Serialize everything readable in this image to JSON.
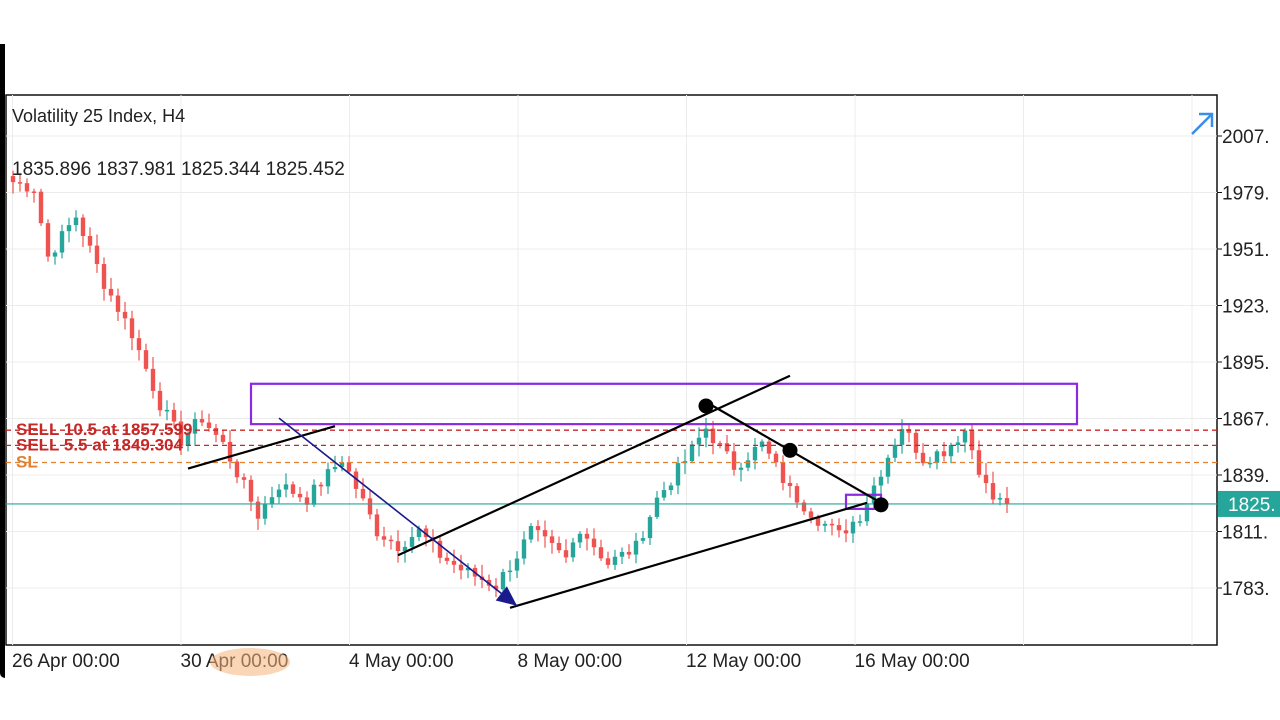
{
  "header": {
    "title": "Volatility 25 Index, H4",
    "ohlc": "1835.896 1837.981 1825.344 1825.452"
  },
  "icons": {
    "expand": "diagonal-arrow-icon"
  },
  "colors": {
    "bull": "#26a69a",
    "bear": "#ef5350",
    "zone": "#8a2be2",
    "trendline": "#000000",
    "arrow_line": "#1a1a8c",
    "sell_line": "#c62828",
    "sl_line": "#e08030",
    "price_tag": "#26a69a"
  },
  "orders": [
    {
      "label": "SELL  10.5 at 1857.599",
      "price": 1862.0,
      "kind": "sell"
    },
    {
      "label": "SELL  5.5 at 1849.304",
      "price": 1854.5,
      "kind": "sell"
    },
    {
      "label": "SL",
      "price": 1846.0,
      "kind": "sl"
    }
  ],
  "chart_data": {
    "type": "candlestick",
    "symbol": "Volatility 25 Index",
    "timeframe": "H4",
    "last_price_label": "1825.",
    "last_price": 1825.452,
    "y_ticks": [
      "2007.",
      "1979.",
      "1951.",
      "1923.",
      "1895.",
      "1867.",
      "1839.",
      "1811.",
      "1783."
    ],
    "y_tick_values": [
      2007.8,
      1979.8,
      1951.8,
      1923.8,
      1895.8,
      1867.8,
      1839.8,
      1811.8,
      1783.8
    ],
    "ylim": [
      1770,
      2020
    ],
    "x_ticks": [
      "26 Apr 00:00",
      "30 Apr 00:00",
      "4 May 00:00",
      "8 May 00:00",
      "12 May 00:00",
      "16 May 00:00"
    ],
    "x_tick_index": [
      0,
      24,
      48,
      72,
      96,
      120
    ],
    "price_anchors": [
      [
        0,
        1985
      ],
      [
        3,
        1982
      ],
      [
        5,
        1948
      ],
      [
        9,
        1968
      ],
      [
        13,
        1935
      ],
      [
        17,
        1910
      ],
      [
        21,
        1875
      ],
      [
        24,
        1857
      ],
      [
        27,
        1868
      ],
      [
        30,
        1855
      ],
      [
        35,
        1820
      ],
      [
        38,
        1835
      ],
      [
        42,
        1828
      ],
      [
        47,
        1848
      ],
      [
        52,
        1812
      ],
      [
        55,
        1805
      ],
      [
        58,
        1812
      ],
      [
        61,
        1800
      ],
      [
        64,
        1793
      ],
      [
        69,
        1785
      ],
      [
        72,
        1800
      ],
      [
        74,
        1812
      ],
      [
        79,
        1798
      ],
      [
        81,
        1814
      ],
      [
        85,
        1796
      ],
      [
        89,
        1804
      ],
      [
        92,
        1828
      ],
      [
        96,
        1847
      ],
      [
        99,
        1863
      ],
      [
        103,
        1844
      ],
      [
        107,
        1855
      ],
      [
        111,
        1832
      ],
      [
        115,
        1818
      ],
      [
        118,
        1810
      ],
      [
        121,
        1820
      ],
      [
        124,
        1842
      ],
      [
        127,
        1864
      ],
      [
        130,
        1848
      ],
      [
        133,
        1852
      ],
      [
        136,
        1862
      ],
      [
        139,
        1834
      ],
      [
        140,
        1828
      ],
      [
        142,
        1825.4
      ]
    ],
    "zones": [
      {
        "x0": 34,
        "x1": 152,
        "y0": 1885,
        "y1": 1865
      },
      {
        "x0": 119,
        "x1": 124,
        "y0": 1830,
        "y1": 1823
      }
    ],
    "trendlines": [
      {
        "from": [
          25,
          1843
        ],
        "to": [
          46,
          1864
        ]
      },
      {
        "from": [
          55,
          1800
        ],
        "to": [
          111,
          1889
        ]
      },
      {
        "from": [
          71,
          1774
        ],
        "to": [
          122,
          1826
        ]
      },
      {
        "from": [
          100,
          1874
        ],
        "to": [
          124,
          1826
        ]
      }
    ],
    "arrow_line": {
      "from": [
        38,
        1868
      ],
      "to": [
        72,
        1775
      ]
    },
    "markers": [
      {
        "x": 99,
        "y": 1874
      },
      {
        "x": 111,
        "y": 1852
      },
      {
        "x": 124,
        "y": 1825
      }
    ]
  }
}
